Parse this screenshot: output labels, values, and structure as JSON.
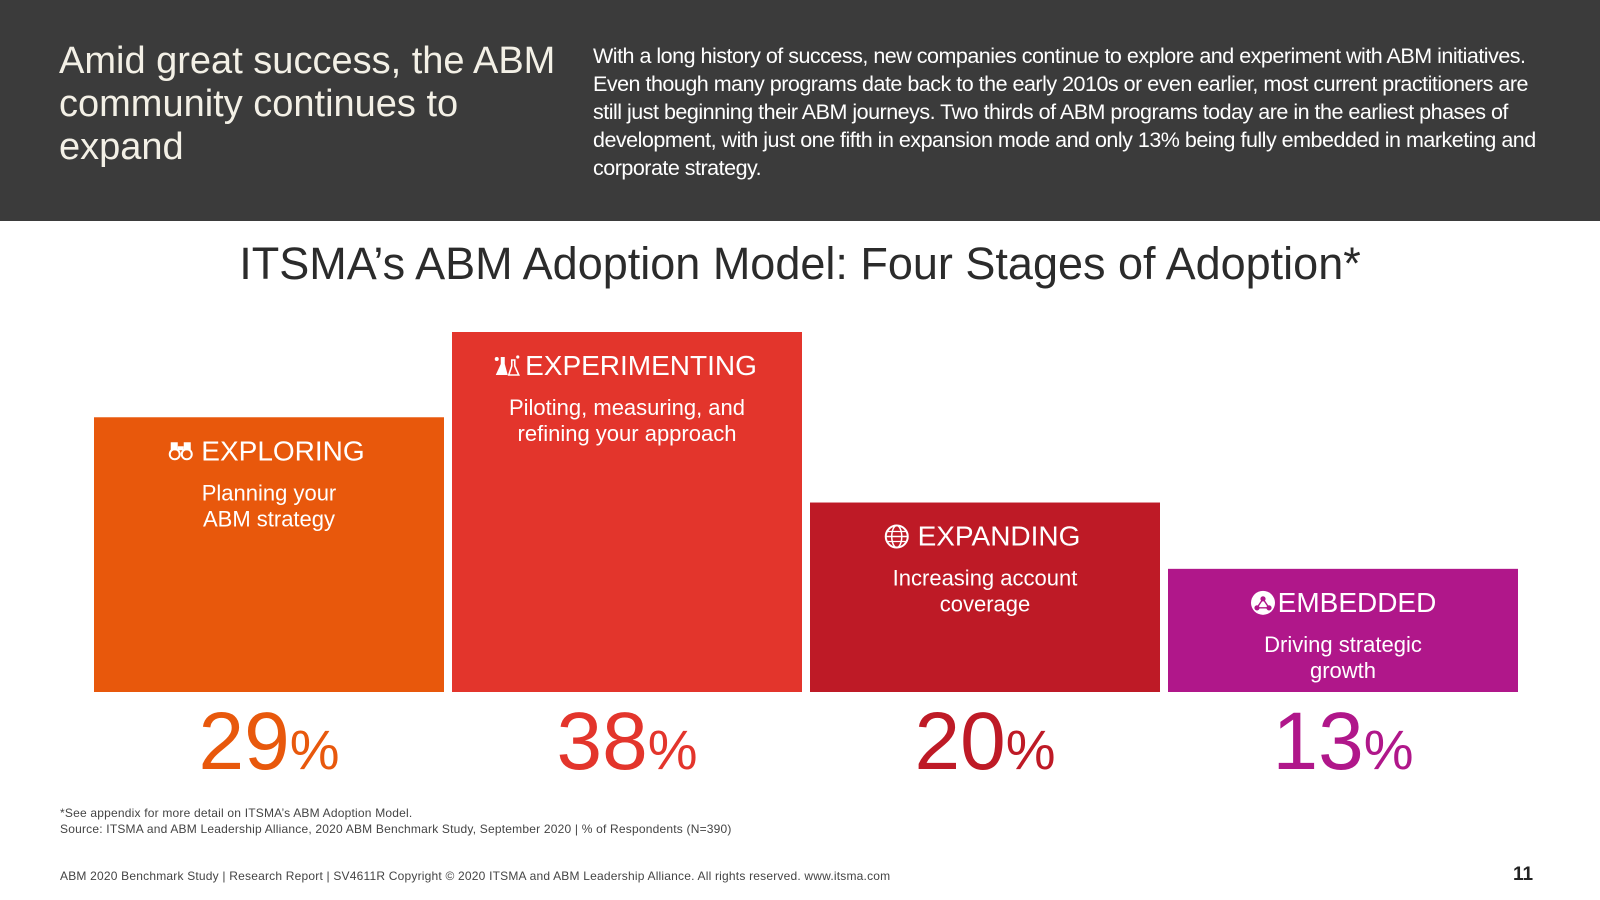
{
  "header": {
    "title": "Amid great success, the ABM community continues to expand",
    "body": "With a long history of success, new companies continue to explore and experiment with ABM initiatives. Even though many programs date back to the early 2010s or even earlier, most current practitioners are still just beginning their ABM journeys. Two thirds of ABM programs today are in the earliest phases of development, with just one fifth in expansion mode and only 13% being fully embedded in marketing and corporate strategy."
  },
  "chart_data": {
    "type": "bar",
    "title": "ITSMA’s ABM Adoption Model: Four Stages of Adoption*",
    "categories": [
      "EXPLORING",
      "EXPERIMENTING",
      "EXPANDING",
      "EMBEDDED"
    ],
    "values": [
      29,
      38,
      20,
      13
    ],
    "unit": "%",
    "descriptions": [
      [
        "Planning your",
        "ABM strategy"
      ],
      [
        "Piloting, measuring, and",
        "refining your approach"
      ],
      [
        "Increasing account",
        "coverage"
      ],
      [
        "Driving strategic",
        "growth"
      ]
    ],
    "colors": [
      "#e8580c",
      "#e3352c",
      "#be1a26",
      "#b0178a"
    ],
    "icons": [
      "binoculars-icon",
      "lab-flask-icon",
      "globe-icon",
      "network-icon"
    ],
    "ylim": [
      0,
      38
    ],
    "grid": false,
    "legend": "none"
  },
  "footnotes": {
    "appendix": "*See appendix for more detail on ITSMA’s ABM Adoption Model.",
    "source": "Source: ITSMA and ABM Leadership Alliance, 2020 ABM Benchmark Study, September 2020 | % of Respondents (N=390)"
  },
  "footer": {
    "text": "ABM 2020 Benchmark Study | Research Report | SV4611R Copyright © 2020 ITSMA and ABM Leadership Alliance. All rights reserved. www.itsma.com",
    "page_number": "11"
  }
}
